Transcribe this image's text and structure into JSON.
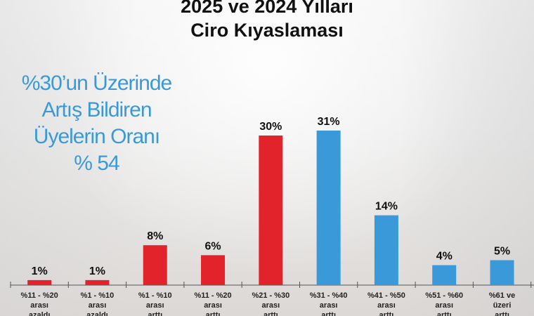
{
  "chart_data": {
    "type": "bar",
    "title": "2025 ve 2024 Yılları Ciro Kıyaslaması",
    "title_lines": [
      "2025 ve 2024 Yılları",
      "Ciro Kıyaslaması"
    ],
    "annotation_lines": [
      "%30’un Üzerinde",
      "Artış Bildiren",
      "Üyelerin Oranı",
      "% 54"
    ],
    "categories": [
      [
        "%11 - %20",
        "arası",
        "azaldı"
      ],
      [
        "%1 - %10",
        "arası",
        "azaldı"
      ],
      [
        "%1 - %10",
        "arası",
        "arttı"
      ],
      [
        "%11 - %20",
        "arası",
        "arttı"
      ],
      [
        "%21 - %30",
        "arası",
        "arttı"
      ],
      [
        "%31 - %40",
        "arası",
        "arttı"
      ],
      [
        "%41 - %50",
        "arası",
        "arttı"
      ],
      [
        "%51 - %60",
        "arası",
        "arttı"
      ],
      [
        "%61 ve",
        "üzeri",
        "arttı"
      ]
    ],
    "values": [
      1,
      1,
      8,
      6,
      30,
      31,
      14,
      4,
      5
    ],
    "data_labels": [
      "1%",
      "1%",
      "8%",
      "6%",
      "30%",
      "31%",
      "14%",
      "4%",
      "5%"
    ],
    "bar_colors": [
      "#e3232b",
      "#e3232b",
      "#e3232b",
      "#e3232b",
      "#e3232b",
      "#3a9ad9",
      "#3a9ad9",
      "#3a9ad9",
      "#3a9ad9"
    ],
    "ylim": [
      0,
      32
    ],
    "grid": false,
    "xlabel": "",
    "ylabel": ""
  }
}
